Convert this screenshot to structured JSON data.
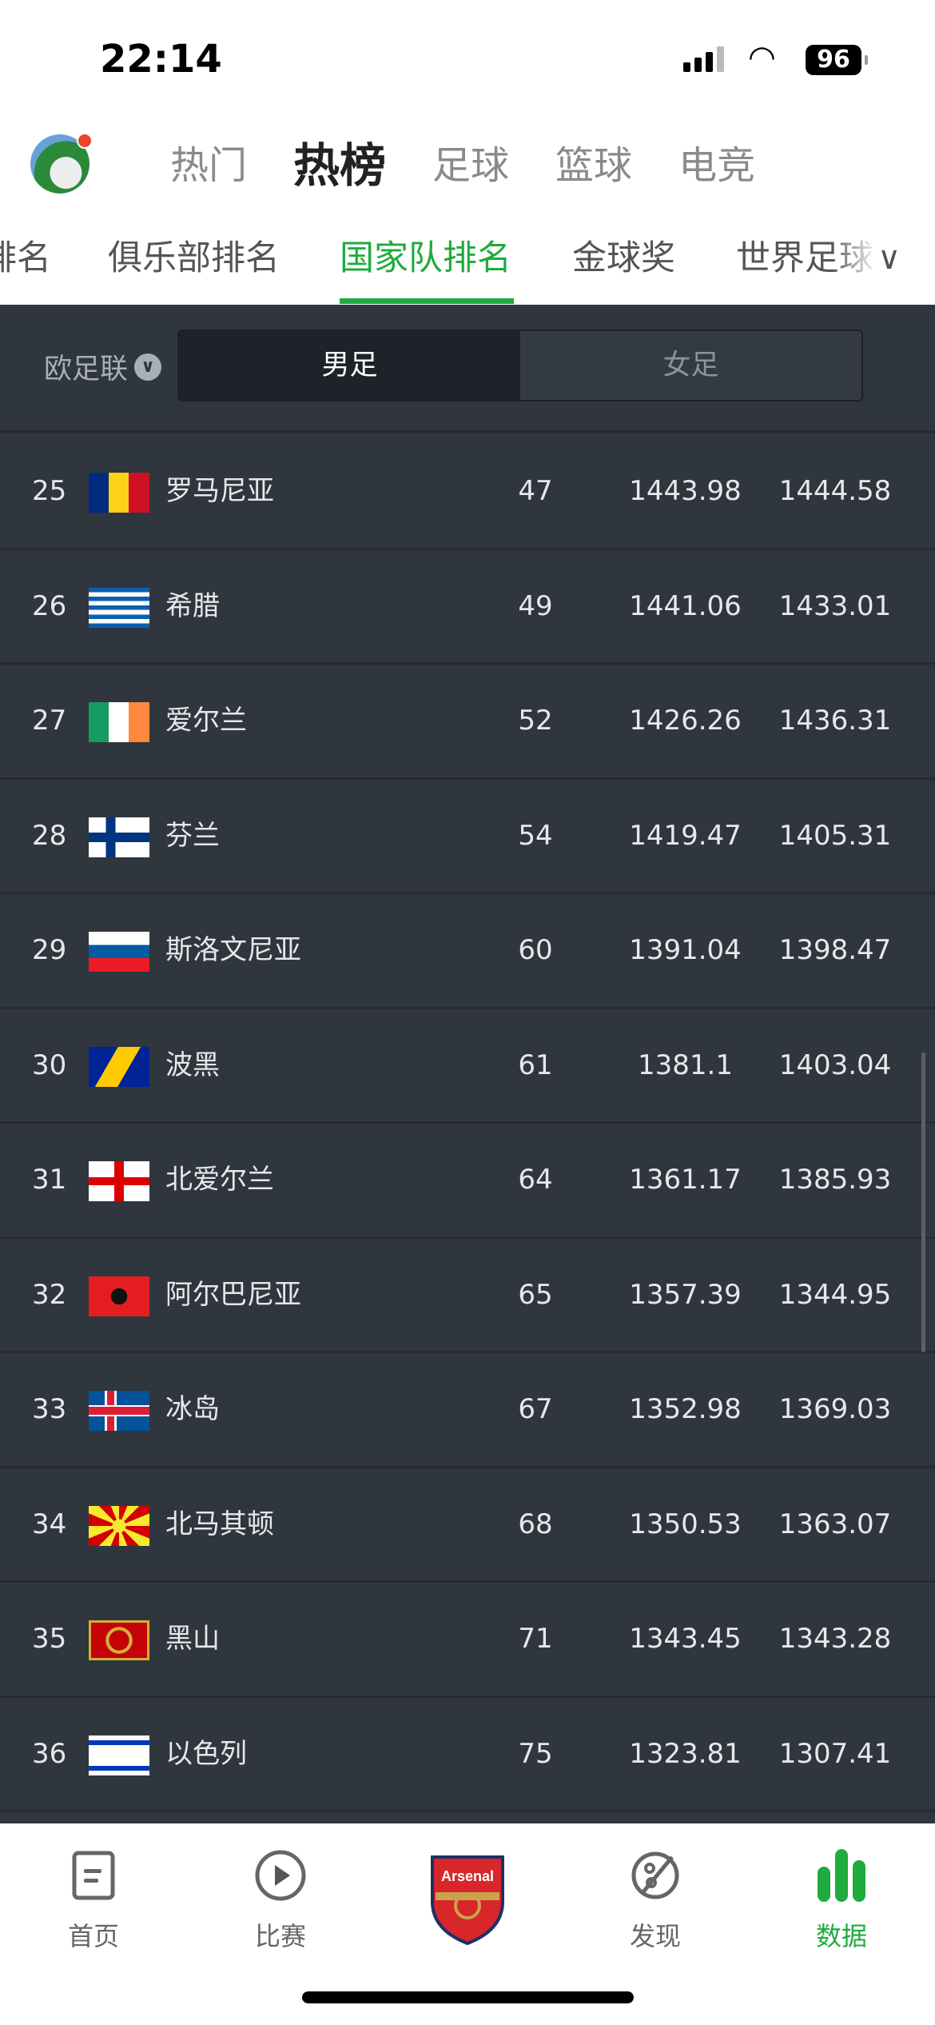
{
  "status_bar": {
    "time": "22:14",
    "battery": "96"
  },
  "top_tabs": [
    {
      "label": "热门",
      "active": false
    },
    {
      "label": "热榜",
      "active": true
    },
    {
      "label": "足球",
      "active": false
    },
    {
      "label": "篮球",
      "active": false
    },
    {
      "label": "电竞",
      "active": false
    }
  ],
  "sub_tabs": [
    {
      "label": "排名"
    },
    {
      "label": "俱乐部排名"
    },
    {
      "label": "国家队排名",
      "active": true
    },
    {
      "label": "金球奖"
    },
    {
      "label": "世界足球"
    }
  ],
  "filter": {
    "region": "欧足联",
    "segments": [
      {
        "label": "男足",
        "active": true
      },
      {
        "label": "女足",
        "active": false
      }
    ]
  },
  "rows": [
    {
      "rank": "25",
      "flag": "romania",
      "name": "罗马尼亚",
      "c3": "47",
      "c4": "1443.98",
      "c5": "1444.58"
    },
    {
      "rank": "26",
      "flag": "greece",
      "name": "希腊",
      "c3": "49",
      "c4": "1441.06",
      "c5": "1433.01"
    },
    {
      "rank": "27",
      "flag": "ireland",
      "name": "爱尔兰",
      "c3": "52",
      "c4": "1426.26",
      "c5": "1436.31"
    },
    {
      "rank": "28",
      "flag": "finland",
      "name": "芬兰",
      "c3": "54",
      "c4": "1419.47",
      "c5": "1405.31"
    },
    {
      "rank": "29",
      "flag": "slovenia",
      "name": "斯洛文尼亚",
      "c3": "60",
      "c4": "1391.04",
      "c5": "1398.47"
    },
    {
      "rank": "30",
      "flag": "bosnia",
      "name": "波黑",
      "c3": "61",
      "c4": "1381.1",
      "c5": "1403.04"
    },
    {
      "rank": "31",
      "flag": "northern-ireland",
      "name": "北爱尔兰",
      "c3": "64",
      "c4": "1361.17",
      "c5": "1385.93"
    },
    {
      "rank": "32",
      "flag": "albania",
      "name": "阿尔巴尼亚",
      "c3": "65",
      "c4": "1357.39",
      "c5": "1344.95"
    },
    {
      "rank": "33",
      "flag": "iceland",
      "name": "冰岛",
      "c3": "67",
      "c4": "1352.98",
      "c5": "1369.03"
    },
    {
      "rank": "34",
      "flag": "north-macedonia",
      "name": "北马其顿",
      "c3": "68",
      "c4": "1350.53",
      "c5": "1363.07"
    },
    {
      "rank": "35",
      "flag": "montenegro",
      "name": "黑山",
      "c3": "71",
      "c4": "1343.45",
      "c5": "1343.28"
    },
    {
      "rank": "36",
      "flag": "israel",
      "name": "以色列",
      "c3": "75",
      "c4": "1323.81",
      "c5": "1307.41"
    }
  ],
  "bottom_nav": [
    {
      "label": "首页",
      "icon": "home-doc-icon"
    },
    {
      "label": "比赛",
      "icon": "play-circle-icon"
    },
    {
      "label": "",
      "icon": "arsenal-crest",
      "logo_text": "Arsenal"
    },
    {
      "label": "发现",
      "icon": "planet-icon"
    },
    {
      "label": "数据",
      "icon": "bar-chart-icon",
      "active": true
    }
  ],
  "colors": {
    "accent": "#1fab3d",
    "panel": "#30363d"
  }
}
